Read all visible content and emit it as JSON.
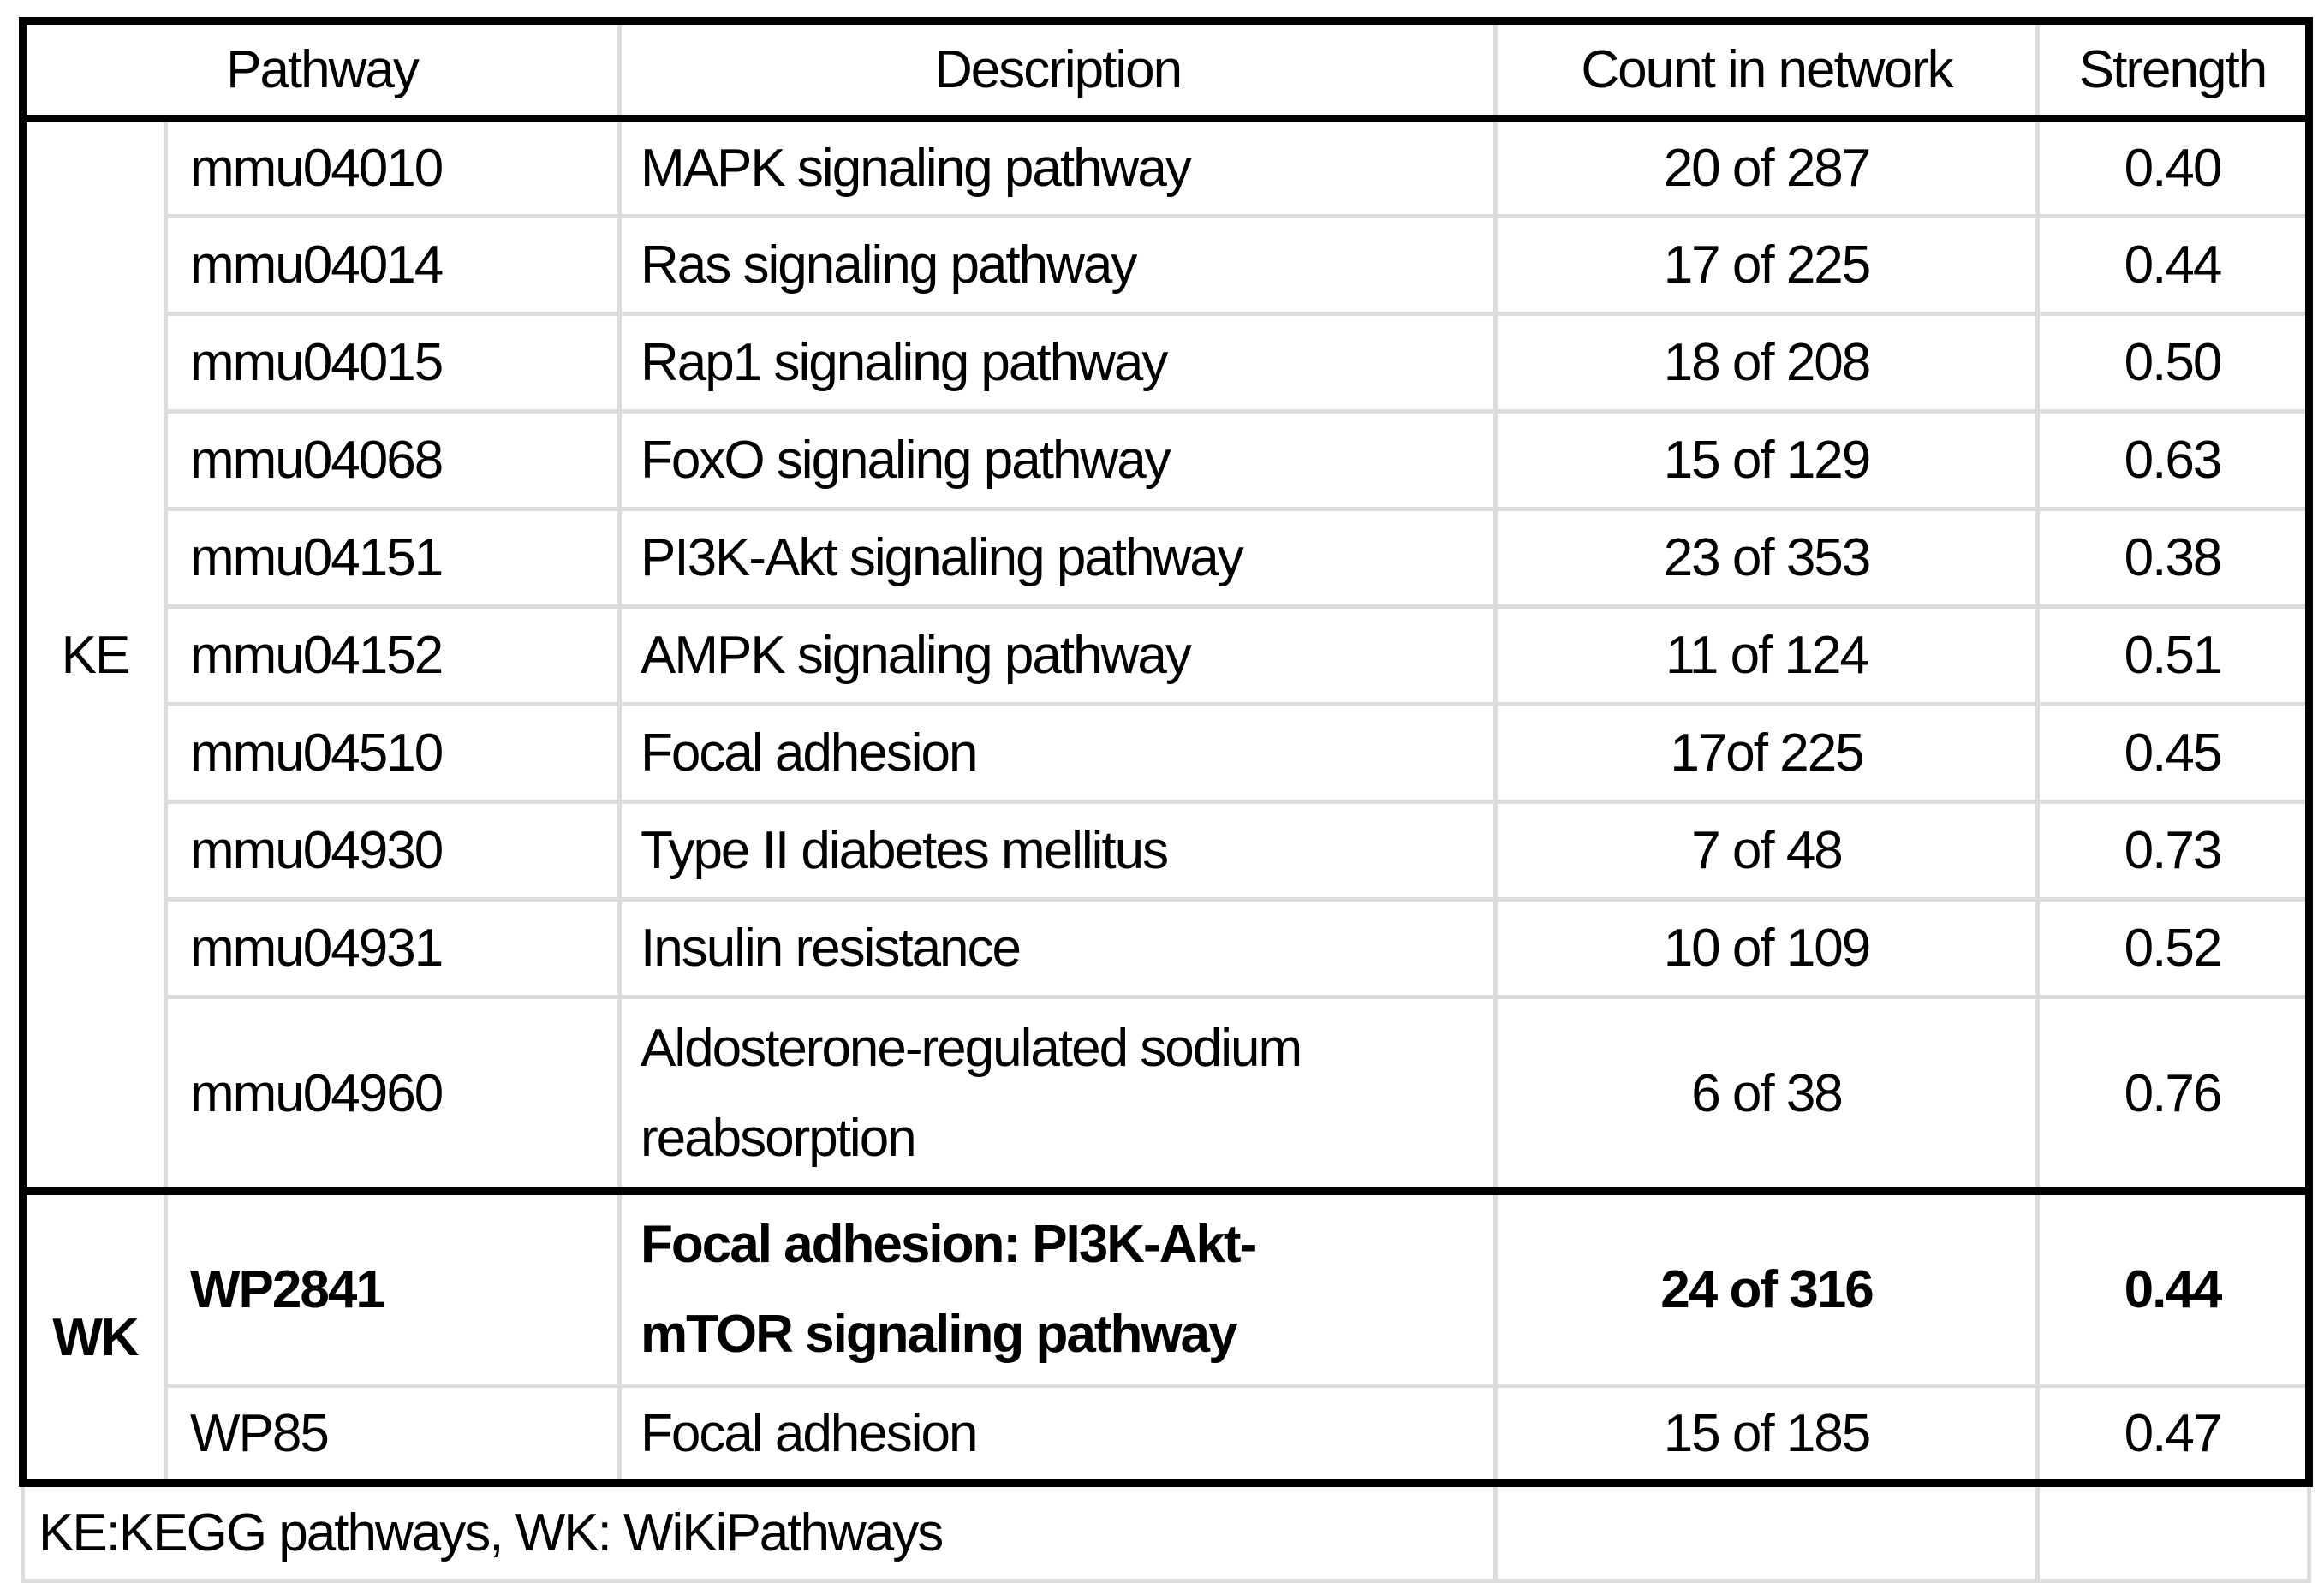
{
  "page": {
    "background": "#ffffff",
    "grid_color": "#dcdcdc",
    "border_color": "#000000",
    "text_color": "#000000"
  },
  "table": {
    "headers": {
      "pathway": "Pathway",
      "description": "Description",
      "count": "Count in network",
      "strength": "Strength"
    },
    "groups": [
      {
        "label": "KE",
        "rows": [
          {
            "pathway": "mmu04010",
            "description": "MAPK signaling pathway",
            "count": "20 of 287",
            "strength": "0.40"
          },
          {
            "pathway": "mmu04014",
            "description": "Ras signaling pathway",
            "count": "17 of 225",
            "strength": "0.44"
          },
          {
            "pathway": "mmu04015",
            "description": "Rap1 signaling pathway",
            "count": "18 of 208",
            "strength": "0.50"
          },
          {
            "pathway": "mmu04068",
            "description": "FoxO signaling pathway",
            "count": "15 of 129",
            "strength": "0.63"
          },
          {
            "pathway": "mmu04151",
            "description": "PI3K-Akt signaling pathway",
            "count": "23 of 353",
            "strength": "0.38"
          },
          {
            "pathway": "mmu04152",
            "description": "AMPK signaling pathway",
            "count": "11 of 124",
            "strength": "0.51"
          },
          {
            "pathway": "mmu04510",
            "description": "Focal adhesion",
            "count": "17of 225",
            "strength": "0.45"
          },
          {
            "pathway": "mmu04930",
            "description": "Type II diabetes mellitus",
            "count": "7 of 48",
            "strength": "0.73"
          },
          {
            "pathway": "mmu04931",
            "description": "Insulin resistance",
            "count": "10 of 109",
            "strength": "0.52"
          },
          {
            "pathway": "mmu04960",
            "description": "Aldosterone-regulated sodium\nreabsorption",
            "count": "6 of 38",
            "strength": "0.76",
            "tall": true
          }
        ]
      },
      {
        "label": "WK",
        "rows": [
          {
            "pathway": "WP2841",
            "description": "Focal adhesion: PI3K-Akt-\nmTOR signaling pathway",
            "count": "24 of 316",
            "strength": "0.44",
            "bold": true,
            "tall": true
          },
          {
            "pathway": "WP85",
            "description": "Focal adhesion",
            "count": "15 of 185",
            "strength": "0.47"
          }
        ]
      }
    ],
    "footer_note": "KE:KEGG pathways, WK: WiKiPathways"
  }
}
